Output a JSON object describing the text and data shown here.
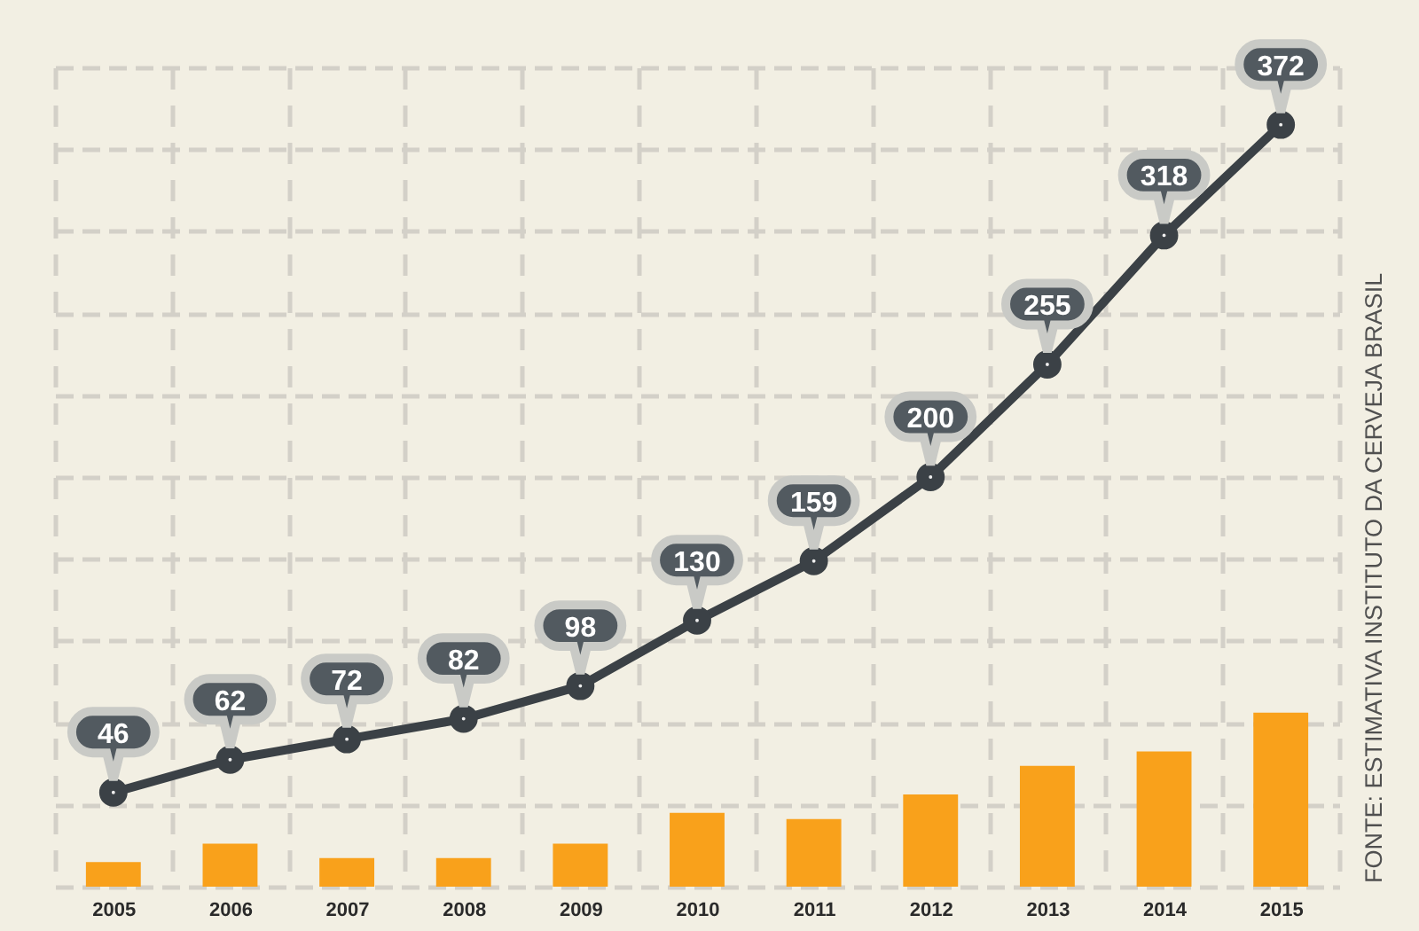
{
  "chart_data": {
    "type": "line",
    "categories": [
      "2005",
      "2006",
      "2007",
      "2008",
      "2009",
      "2010",
      "2011",
      "2012",
      "2013",
      "2014",
      "2015"
    ],
    "series": [
      {
        "color": "#3b4146",
        "values": [
          46,
          62,
          72,
          82,
          98,
          130,
          159,
          200,
          255,
          318,
          372
        ],
        "value_labels": [
          "46",
          "62",
          "72",
          "82",
          "98",
          "130",
          "159",
          "200",
          "255",
          "318",
          "372"
        ]
      },
      {
        "type": "bar",
        "color": "#f9a11b",
        "values": [
          12,
          21,
          14,
          14,
          21,
          36,
          33,
          45,
          59,
          66,
          85
        ]
      }
    ],
    "ylim": [
      0,
      400
    ],
    "yticks": [
      {
        "value": 0,
        "label": null
      },
      {
        "value": 40,
        "label": null
      },
      {
        "value": 80,
        "label": null
      },
      {
        "value": 120,
        "label": null
      },
      {
        "value": 160,
        "label": null
      },
      {
        "value": 200,
        "label": null
      },
      {
        "value": 240,
        "label": null
      },
      {
        "value": 280,
        "label": null
      },
      {
        "value": 320,
        "label": null
      },
      {
        "value": 360,
        "label": null
      },
      {
        "value": 400,
        "label": null
      }
    ],
    "grid": true,
    "marker": "circle",
    "tick_labels": "x",
    "annotations": [
      "FONTE: ESTIMATIVA INSTITUTO DA CERVEJA BRASIL"
    ]
  }
}
